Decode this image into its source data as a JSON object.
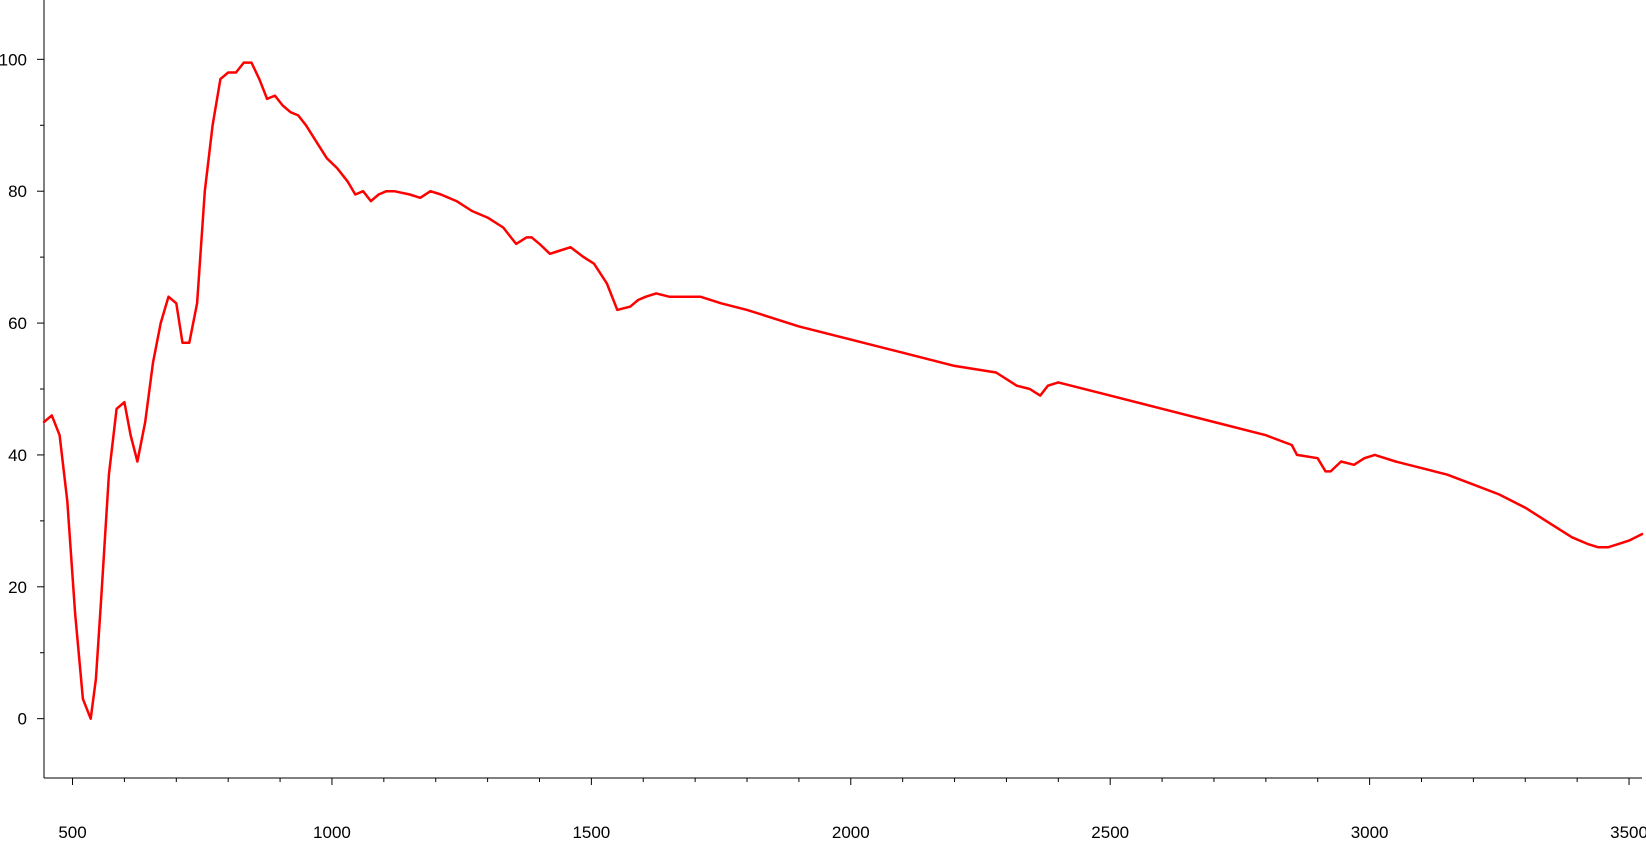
{
  "chart_data": {
    "type": "line",
    "title": "",
    "xlabel": "",
    "ylabel": "",
    "xlim": [
      445,
      3525
    ],
    "ylim": [
      -9,
      109
    ],
    "x_ticks": [
      500,
      1000,
      1500,
      2000,
      2500,
      3000,
      3500
    ],
    "x_tick_labels": [
      "500",
      "1000",
      "1500",
      "2000",
      "2500",
      "3000",
      "3500"
    ],
    "y_ticks": [
      0,
      20,
      40,
      60,
      80,
      100
    ],
    "y_tick_labels": [
      "0",
      "20",
      "40",
      "60",
      "80",
      "100"
    ],
    "grid": false,
    "legend": "none",
    "series": [
      {
        "color": "#ff0000",
        "x": [
          445,
          460,
          475,
          490,
          505,
          520,
          535,
          545,
          555,
          570,
          585,
          600,
          612,
          625,
          640,
          655,
          670,
          685,
          700,
          712,
          725,
          740,
          755,
          770,
          785,
          800,
          815,
          830,
          845,
          860,
          875,
          890,
          905,
          920,
          935,
          950,
          970,
          990,
          1010,
          1030,
          1045,
          1060,
          1075,
          1090,
          1105,
          1120,
          1150,
          1170,
          1190,
          1210,
          1240,
          1270,
          1300,
          1330,
          1355,
          1375,
          1385,
          1400,
          1420,
          1440,
          1460,
          1485,
          1505,
          1530,
          1550,
          1575,
          1590,
          1605,
          1625,
          1650,
          1680,
          1710,
          1750,
          1800,
          1900,
          2000,
          2100,
          2200,
          2280,
          2320,
          2345,
          2355,
          2365,
          2380,
          2400,
          2500,
          2600,
          2700,
          2800,
          2850,
          2860,
          2900,
          2915,
          2925,
          2945,
          2970,
          2990,
          3010,
          3050,
          3100,
          3150,
          3200,
          3250,
          3300,
          3350,
          3390,
          3420,
          3440,
          3460,
          3480,
          3500,
          3525
        ],
        "y": [
          45,
          46,
          43,
          33,
          16,
          3,
          0,
          6,
          18,
          37,
          47,
          48,
          43,
          39,
          45,
          54,
          60,
          64,
          63,
          57,
          57,
          63,
          80,
          90,
          97,
          98,
          98,
          99.5,
          99.5,
          97,
          94,
          94.5,
          93,
          92,
          91.5,
          90,
          87.5,
          85,
          83.5,
          81.5,
          79.5,
          80,
          78.5,
          79.5,
          80,
          80,
          79.5,
          79,
          80,
          79.5,
          78.5,
          77,
          76,
          74.5,
          72,
          73,
          73,
          72,
          70.5,
          71,
          71.5,
          70,
          69,
          66,
          62,
          62.5,
          63.5,
          64,
          64.5,
          64,
          64,
          64,
          63,
          62,
          59.5,
          57.5,
          55.5,
          53.5,
          52.5,
          50.5,
          50,
          49.5,
          49,
          50.5,
          51,
          49,
          47,
          45,
          43,
          41.5,
          40,
          39.5,
          37.5,
          37.5,
          39,
          38.5,
          39.5,
          40,
          39,
          38,
          37,
          35.5,
          34,
          32,
          29.5,
          27.5,
          26.5,
          26,
          26,
          26.5,
          27,
          28
        ]
      }
    ]
  }
}
